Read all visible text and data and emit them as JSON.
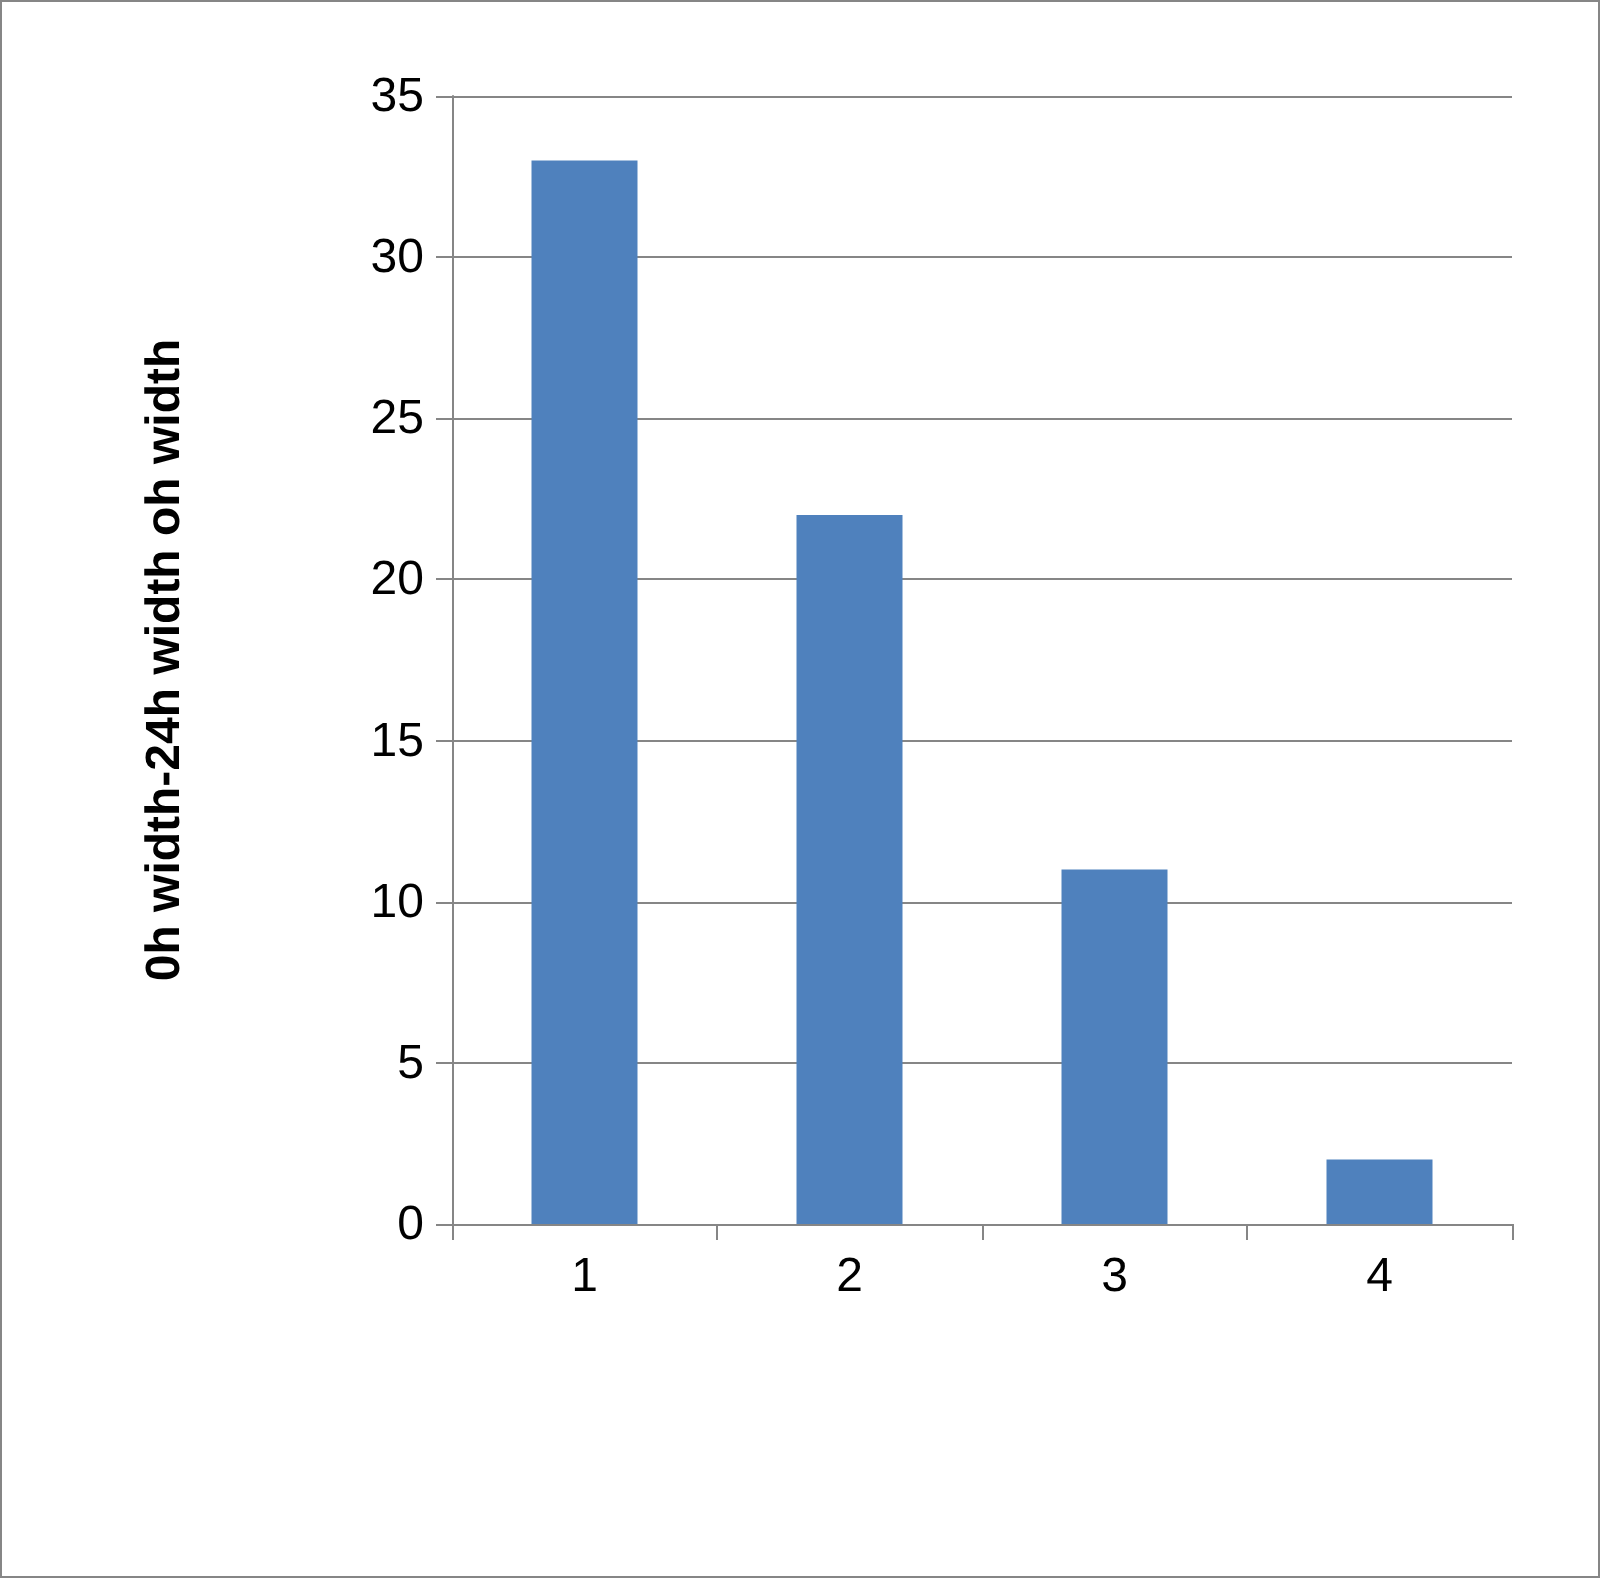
{
  "chart_data": {
    "type": "bar",
    "ylabel": "0h width-24h width oh width",
    "categories": [
      "1",
      "2",
      "3",
      "4"
    ],
    "values": [
      33,
      22,
      11,
      2
    ],
    "color": "#4f81bd",
    "ylim": [
      0,
      35
    ],
    "yticks": [
      0,
      5,
      10,
      15,
      20,
      25,
      30,
      35
    ],
    "grid": "y"
  }
}
